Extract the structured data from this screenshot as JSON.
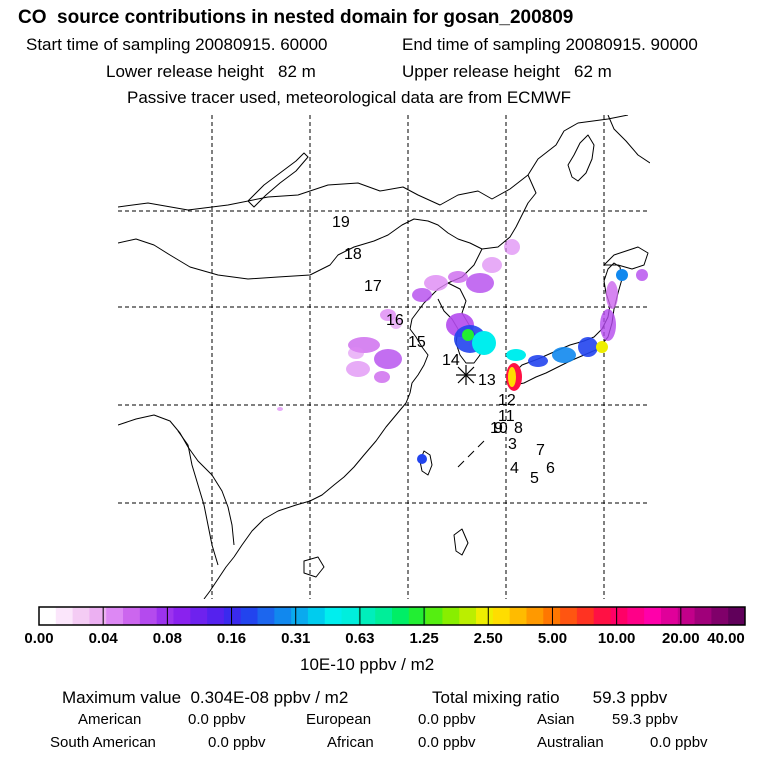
{
  "title": "CO  source contributions in nested domain for gosan_200809",
  "header": {
    "start_label": "Start time of sampling 20080915. 60000",
    "end_label": "End time of sampling 20080915. 90000",
    "lower_label": "Lower release height   82 m",
    "upper_label": "Upper release height   62 m",
    "tracer_note": "Passive tracer used, meteorological data are from ECMWF"
  },
  "map": {
    "trajectory_labels": [
      "19",
      "18",
      "17",
      "16",
      "15",
      "14",
      "13",
      "12",
      "11",
      "10",
      "9",
      "8",
      "3",
      "7",
      "4",
      "5",
      "6"
    ],
    "receptor_marker": "asterisk"
  },
  "colorbar": {
    "ticks": [
      "0.00",
      "0.04",
      "0.08",
      "0.16",
      "0.31",
      "0.63",
      "1.25",
      "2.50",
      "5.00",
      "10.00",
      "20.00",
      "40.00"
    ],
    "unit": "10E-10 ppbv / m2",
    "colors": [
      "#ffffff",
      "#fbe6fb",
      "#f4ccf4",
      "#ecb0f2",
      "#dd88f4",
      "#cc66ee",
      "#b44aee",
      "#9c33ee",
      "#8a22ee",
      "#6e22ee",
      "#5522ee",
      "#3a2aee",
      "#2244ee",
      "#1c66ee",
      "#1188ee",
      "#0aaaee",
      "#00ccee",
      "#00eeee",
      "#00eedd",
      "#00eebb",
      "#00ee99",
      "#00ee66",
      "#22ee33",
      "#55ee11",
      "#88ee00",
      "#bbee00",
      "#eeee00",
      "#ffdd00",
      "#ffbb00",
      "#ff9900",
      "#ff7700",
      "#ff5511",
      "#ff3322",
      "#ff1144",
      "#ff0066",
      "#ff0088",
      "#ff00aa",
      "#e0009a",
      "#c2008a",
      "#a0007a",
      "#80006a",
      "#60005a"
    ]
  },
  "footer": {
    "max_value": "Maximum value  0.304E-08 ppbv / m2",
    "total_mixing": "Total mixing ratio       59.3 ppbv",
    "american_label": "American",
    "american_value": "0.0 ppbv",
    "european_label": "European",
    "european_value": "0.0 ppbv",
    "asian_label": "Asian",
    "asian_value": "59.3 ppbv",
    "south_american_label": "South American",
    "south_american_value": "0.0 ppbv",
    "african_label": "African",
    "african_value": "0.0 ppbv",
    "australian_label": "Australian",
    "australian_value": "0.0 ppbv"
  }
}
